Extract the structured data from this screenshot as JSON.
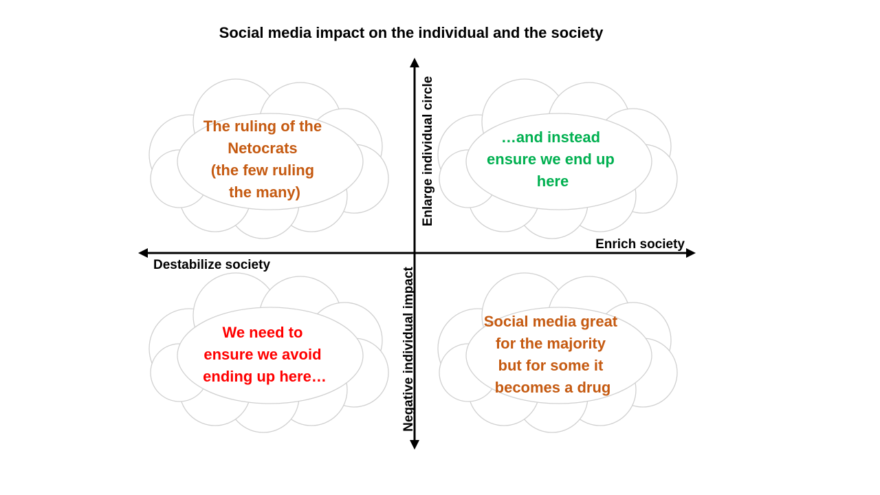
{
  "title": "Social media impact on the individual and the society",
  "axes": {
    "x_positive": "Enrich society",
    "x_negative": "Destabilize society",
    "y_positive": "Enlarge individual circle",
    "y_negative": "Negative individual impact"
  },
  "quadrants": {
    "top_left": {
      "lines": [
        "The ruling of the",
        "Netocrats",
        "(the few ruling",
        "the many)"
      ],
      "color": "#c55a11"
    },
    "top_right": {
      "lines": [
        "…and instead",
        "ensure we end up",
        "here"
      ],
      "color": "#00b050"
    },
    "bottom_left": {
      "lines": [
        "We need to",
        "ensure we avoid",
        "ending up here…"
      ],
      "color": "#ff0000"
    },
    "bottom_right": {
      "lines": [
        "Social media great",
        "for the majority",
        "but for some it",
        "becomes a drug"
      ],
      "color": "#c55a11"
    }
  },
  "colors": {
    "axis": "#000000",
    "cloud_outline": "#d0d0d0"
  }
}
